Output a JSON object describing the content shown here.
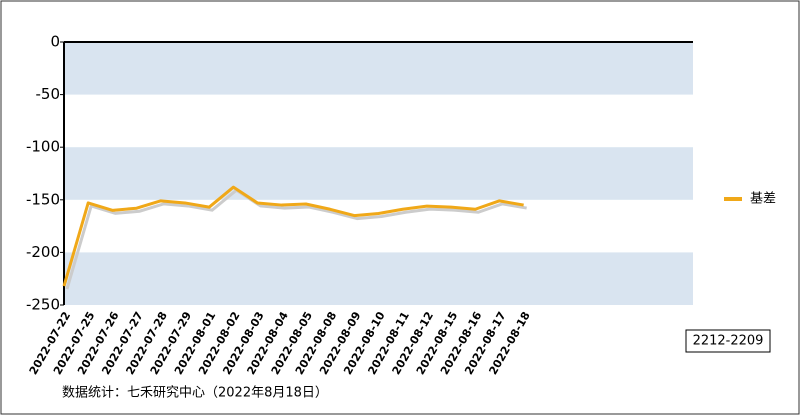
{
  "chart_data": {
    "type": "line",
    "categories": [
      "2022-07-22",
      "2022-07-25",
      "2022-07-26",
      "2022-07-27",
      "2022-07-28",
      "2022-07-29",
      "2022-08-01",
      "2022-08-02",
      "2022-08-03",
      "2022-08-04",
      "2022-08-05",
      "2022-08-08",
      "2022-08-09",
      "2022-08-10",
      "2022-08-11",
      "2022-08-12",
      "2022-08-15",
      "2022-08-16",
      "2022-08-17",
      "2022-08-18"
    ],
    "series": [
      {
        "name": "基差",
        "color": "#f0a818",
        "values": [
          -232,
          -153,
          -160,
          -158,
          -151,
          -153,
          -157,
          -138,
          -153,
          -155,
          -154,
          -159,
          -165,
          -163,
          -159,
          -156,
          -157,
          -159,
          -151,
          -155
        ]
      }
    ],
    "ylim": [
      -250,
      0
    ],
    "yticks": [
      0,
      -50,
      -100,
      -150,
      -200,
      -250
    ],
    "band_color": "#d9e4f0",
    "shadow": true,
    "legend": "right",
    "annotation": "2212-2209",
    "source": "数据统计：七禾研究中心（2022年8月18日）"
  }
}
